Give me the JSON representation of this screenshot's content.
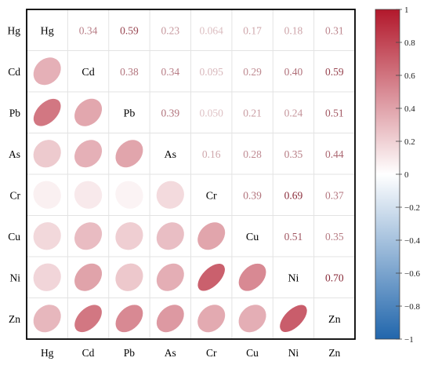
{
  "chart_data": {
    "type": "heatmap",
    "variables": [
      "Hg",
      "Cd",
      "Pb",
      "As",
      "Cr",
      "Cu",
      "Ni",
      "Zn"
    ],
    "correlation_matrix": [
      [
        1.0,
        0.34,
        0.59,
        0.23,
        0.064,
        0.17,
        0.18,
        0.31
      ],
      [
        0.34,
        1.0,
        0.38,
        0.34,
        0.095,
        0.29,
        0.4,
        0.59
      ],
      [
        0.59,
        0.38,
        1.0,
        0.39,
        0.05,
        0.21,
        0.24,
        0.51
      ],
      [
        0.23,
        0.34,
        0.39,
        1.0,
        0.16,
        0.28,
        0.35,
        0.44
      ],
      [
        0.064,
        0.095,
        0.05,
        0.16,
        1.0,
        0.39,
        0.69,
        0.37
      ],
      [
        0.17,
        0.29,
        0.21,
        0.28,
        0.39,
        1.0,
        0.51,
        0.35
      ],
      [
        0.18,
        0.4,
        0.24,
        0.35,
        0.69,
        0.51,
        1.0,
        0.7
      ],
      [
        0.31,
        0.59,
        0.51,
        0.44,
        0.37,
        0.35,
        0.7,
        1.0
      ]
    ],
    "upper_labels": [
      [
        "",
        "0.34",
        "0.59",
        "0.23",
        "0.064",
        "0.17",
        "0.18",
        "0.31"
      ],
      [
        "",
        "",
        "0.38",
        "0.34",
        "0.095",
        "0.29",
        "0.40",
        "0.59"
      ],
      [
        "",
        "",
        "",
        "0.39",
        "0.050",
        "0.21",
        "0.24",
        "0.51"
      ],
      [
        "",
        "",
        "",
        "",
        "0.16",
        "0.28",
        "0.35",
        "0.44"
      ],
      [
        "",
        "",
        "",
        "",
        "",
        "0.39",
        "0.69",
        "0.37"
      ],
      [
        "",
        "",
        "",
        "",
        "",
        "",
        "0.51",
        "0.35"
      ],
      [
        "",
        "",
        "",
        "",
        "",
        "",
        "",
        "0.70"
      ],
      [
        "",
        "",
        "",
        "",
        "",
        "",
        "",
        ""
      ]
    ],
    "lower": "ellipse",
    "upper": "number",
    "diagonal": "variable names",
    "colorbar": {
      "range": [
        -1,
        1
      ],
      "ticks": [
        "1",
        "0.8",
        "0.6",
        "0.4",
        "0.2",
        "0",
        "−0.2",
        "−0.4",
        "−0.6",
        "−0.8",
        "−1"
      ],
      "tick_values": [
        1,
        0.8,
        0.6,
        0.4,
        0.2,
        0,
        -0.2,
        -0.4,
        -0.6,
        -0.8,
        -1
      ],
      "colors": {
        "negative": "#2166ac",
        "zero": "#ffffff",
        "positive": "#b2182b"
      }
    },
    "legend_position": "right",
    "grid": true
  }
}
